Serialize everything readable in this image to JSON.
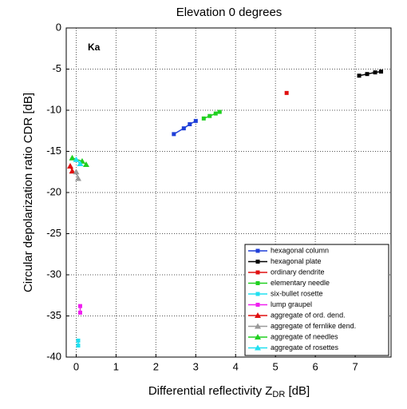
{
  "chart_data": {
    "type": "line",
    "title": "Elevation 0 degrees",
    "annotation": "Ka",
    "xlabel": "Differential reflectivity Z",
    "xlabel_sub": "DR",
    "xlabel_end": " [dB]",
    "ylabel": "Circular depolarization ratio CDR [dB]",
    "xlim": [
      -0.25,
      7.9
    ],
    "ylim": [
      -40,
      0
    ],
    "xticks": [
      0,
      1,
      2,
      3,
      4,
      5,
      6,
      7
    ],
    "yticks": [
      -40,
      -35,
      -30,
      -25,
      -20,
      -15,
      -10,
      -5,
      0
    ],
    "grid": true,
    "legend": "lower right",
    "series": [
      {
        "name": "hexagonal column",
        "color": "#1f3fd8",
        "marker": "square",
        "x": [
          2.45,
          2.7,
          2.85,
          3.0
        ],
        "values": [
          -12.9,
          -12.2,
          -11.7,
          -11.3
        ]
      },
      {
        "name": "hexagonal plate",
        "color": "#000000",
        "marker": "square",
        "x": [
          7.1,
          7.3,
          7.5,
          7.65
        ],
        "values": [
          -5.8,
          -5.6,
          -5.4,
          -5.3
        ]
      },
      {
        "name": "ordinary dendrite",
        "color": "#e01010",
        "marker": "square",
        "x": [
          5.28
        ],
        "values": [
          -7.9
        ]
      },
      {
        "name": "elementary needle",
        "color": "#20d020",
        "marker": "square",
        "x": [
          3.2,
          3.35,
          3.5,
          3.6
        ],
        "values": [
          -11.0,
          -10.7,
          -10.4,
          -10.2
        ]
      },
      {
        "name": "six-bullet rosette",
        "color": "#20e0f0",
        "marker": "square",
        "x": [
          0.05,
          0.05
        ],
        "values": [
          -38.0,
          -38.6
        ]
      },
      {
        "name": "lump graupel",
        "color": "#f020f0",
        "marker": "square",
        "x": [
          0.1,
          0.1
        ],
        "values": [
          -33.8,
          -34.6
        ]
      },
      {
        "name": "aggregate of ord. dend.",
        "color": "#e01010",
        "marker": "triangle",
        "x": [
          -0.15,
          -0.1
        ],
        "values": [
          -16.8,
          -17.4
        ]
      },
      {
        "name": "aggregate of fernlike dend.",
        "color": "#999999",
        "marker": "triangle",
        "x": [
          0.0,
          0.05
        ],
        "values": [
          -17.5,
          -18.3
        ]
      },
      {
        "name": "aggregate of needles",
        "color": "#20d020",
        "marker": "triangle",
        "x": [
          -0.1,
          0.15,
          0.25
        ],
        "values": [
          -15.8,
          -16.2,
          -16.6
        ]
      },
      {
        "name": "aggregate of rosettes",
        "color": "#20e0f0",
        "marker": "triangle",
        "x": [
          0.0,
          0.1
        ],
        "values": [
          -16.0,
          -16.5
        ]
      }
    ]
  }
}
